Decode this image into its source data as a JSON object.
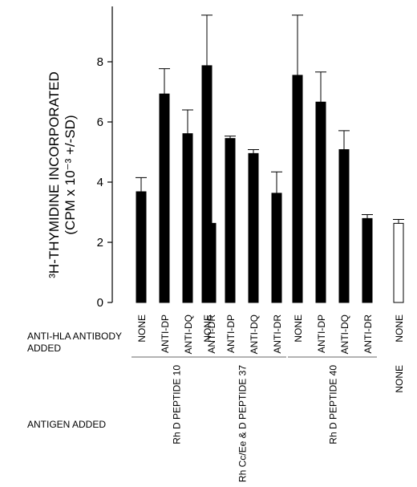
{
  "chart_data": {
    "type": "bar",
    "ylabel_line1": "³H-THYMIDINE INCORPORATED",
    "ylabel_line2": "(CPM x 10⁻³ +/-SD)",
    "yticks": [
      0,
      2,
      4,
      6,
      8
    ],
    "ylim": [
      0,
      9.5
    ],
    "grid": false,
    "antibody_row_label_line1": "ANTI-HLA ANTIBODY",
    "antibody_row_label_line2": "ADDED",
    "antigen_row_label": "ANTIGEN ADDED",
    "groups": [
      {
        "antigen": "Rh D PEPTIDE 10",
        "bars": [
          {
            "antibody": "NONE",
            "value": 3.68,
            "sd": 0.47,
            "fill": "#000000"
          },
          {
            "antibody": "ANTI-DP",
            "value": 6.93,
            "sd": 0.84,
            "fill": "#000000"
          },
          {
            "antibody": "ANTI-DQ",
            "value": 5.61,
            "sd": 0.79,
            "fill": "#000000"
          },
          {
            "antibody": "ANTI-DR",
            "value": 2.63,
            "sd": 0,
            "fill": "#000000"
          }
        ]
      },
      {
        "antigen": "Rh Cc/Ee & D PEPTIDE 37",
        "bars": [
          {
            "antibody": "NONE",
            "value": 7.87,
            "sd": 1.68,
            "fill": "#000000"
          },
          {
            "antibody": "ANTI-DP",
            "value": 5.45,
            "sd": 0.08,
            "fill": "#000000"
          },
          {
            "antibody": "ANTI-DQ",
            "value": 4.95,
            "sd": 0.13,
            "fill": "#000000"
          },
          {
            "antibody": "ANTI-DR",
            "value": 3.63,
            "sd": 0.71,
            "fill": "#000000"
          }
        ]
      },
      {
        "antigen": "Rh D PEPTIDE 40",
        "bars": [
          {
            "antibody": "NONE",
            "value": 7.55,
            "sd": 2.0,
            "fill": "#000000"
          },
          {
            "antibody": "ANTI-DP",
            "value": 6.66,
            "sd": 1.0,
            "fill": "#000000"
          },
          {
            "antibody": "ANTI-DQ",
            "value": 5.08,
            "sd": 0.63,
            "fill": "#000000"
          },
          {
            "antibody": "ANTI-DR",
            "value": 2.79,
            "sd": 0.13,
            "fill": "#000000"
          }
        ]
      },
      {
        "antigen": "NONE",
        "bars": [
          {
            "antibody": "NONE",
            "value": 2.63,
            "sd": 0.13,
            "fill": "#ffffff"
          }
        ]
      }
    ]
  }
}
